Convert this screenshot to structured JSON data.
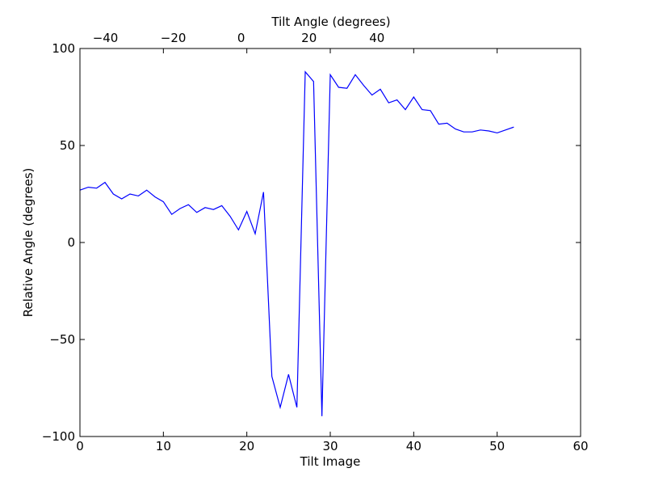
{
  "chart_data": {
    "type": "line",
    "title": "",
    "xlabel": "Tilt Image",
    "ylabel": "Relative Angle (degrees)",
    "top_xlabel": "Tilt Angle (degrees)",
    "xlim": [
      0,
      60
    ],
    "ylim": [
      -100,
      100
    ],
    "top_xlim": [
      -47.5,
      100
    ],
    "x_ticks": [
      "0",
      "10",
      "20",
      "30",
      "40",
      "50",
      "60"
    ],
    "y_ticks": [
      "100",
      "50",
      "0",
      "−50",
      "−100"
    ],
    "top_ticks": [
      "−40",
      "−20",
      "0",
      "20",
      "40"
    ],
    "grid": false,
    "line_color": "#0000ff",
    "series": [
      {
        "x": [
          0,
          1,
          2,
          3,
          4,
          5,
          6,
          7,
          8,
          9,
          10,
          11,
          12,
          13,
          14,
          15,
          16,
          17,
          18,
          19,
          20,
          21,
          22,
          23,
          24,
          25,
          26,
          27,
          28,
          29,
          30,
          31,
          32,
          33,
          34,
          35,
          36,
          37,
          38,
          39,
          40,
          41,
          42,
          43,
          44,
          45,
          46,
          47,
          48,
          49,
          50,
          51,
          52
        ],
        "y": [
          27,
          28.5,
          28,
          31,
          25,
          22.5,
          25,
          24,
          27,
          23.5,
          21,
          14.5,
          17.5,
          19.5,
          15.5,
          18,
          17,
          19,
          13.5,
          6.5,
          16,
          4.5,
          26,
          -69,
          -85,
          -68,
          -85,
          88,
          83,
          -89.5,
          86.5,
          80,
          79.5,
          86.5,
          81,
          76,
          79,
          72,
          73.5,
          68.5,
          75,
          68.5,
          68,
          61,
          61.5,
          58.5,
          57,
          57,
          58,
          57.5,
          56.5,
          58,
          59.5
        ]
      }
    ]
  }
}
